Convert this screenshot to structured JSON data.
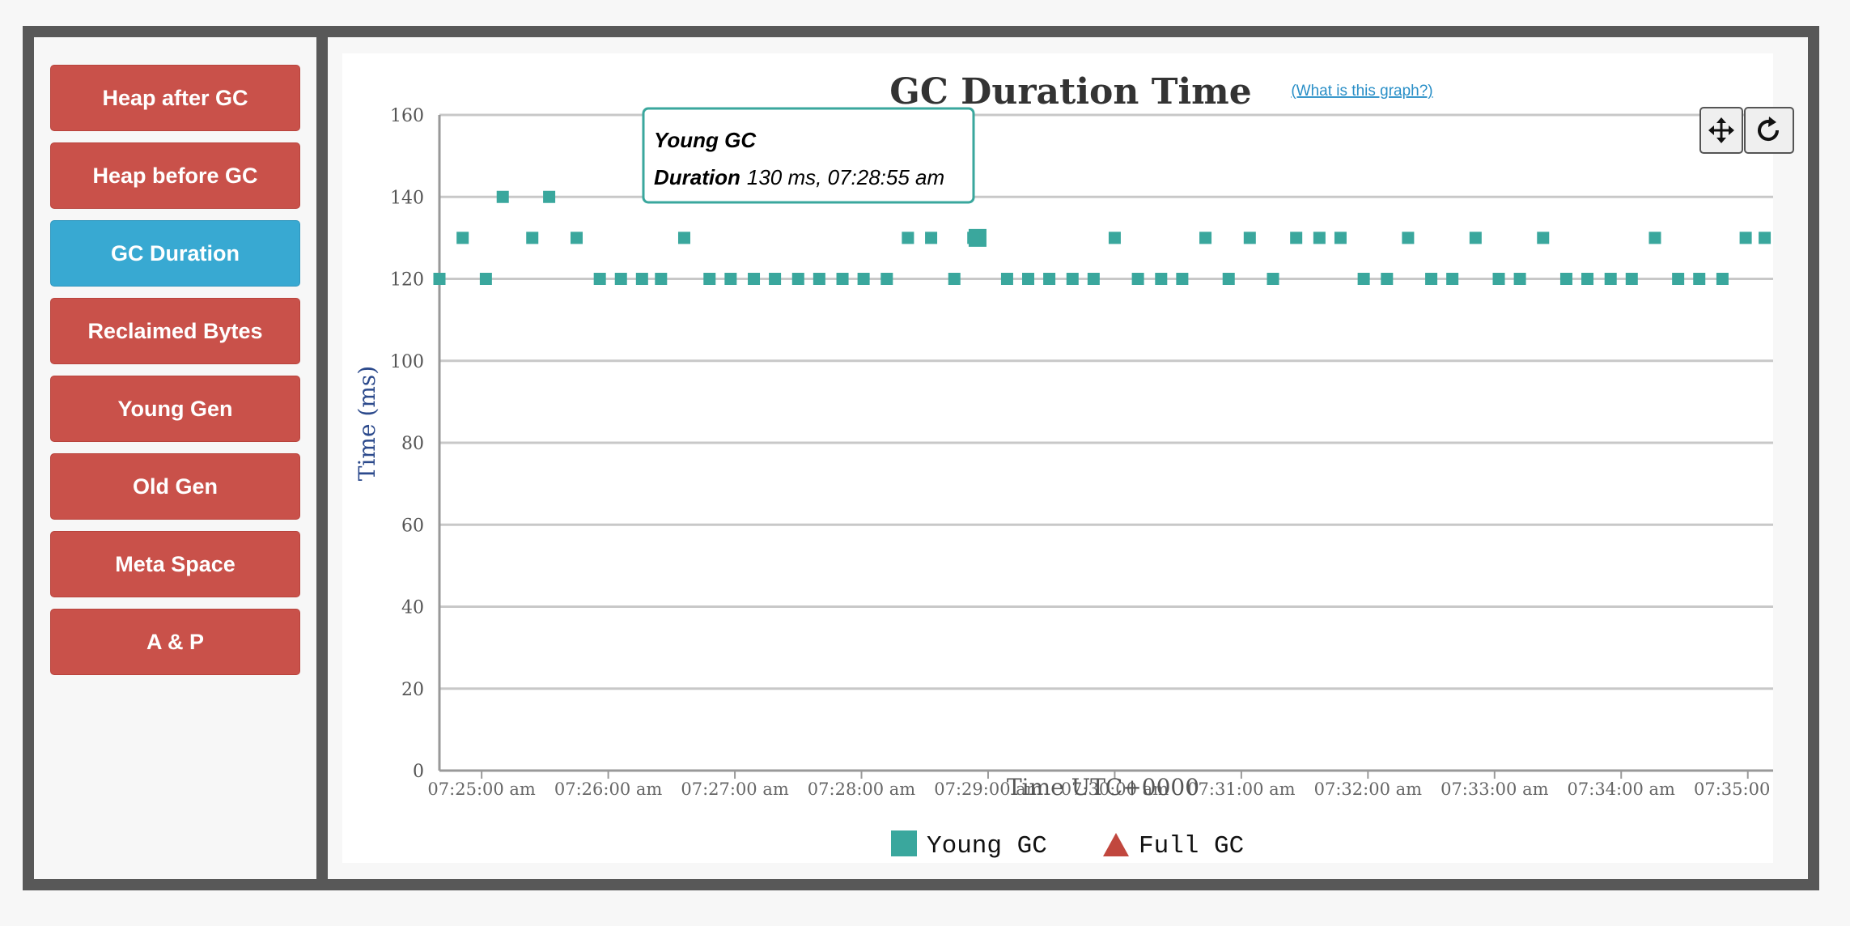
{
  "sidebar": {
    "items": [
      {
        "label": "Heap after GC",
        "active": false
      },
      {
        "label": "Heap before GC",
        "active": false
      },
      {
        "label": "GC Duration",
        "active": true
      },
      {
        "label": "Reclaimed Bytes",
        "active": false
      },
      {
        "label": "Young Gen",
        "active": false
      },
      {
        "label": "Old Gen",
        "active": false
      },
      {
        "label": "Meta Space",
        "active": false
      },
      {
        "label": "A & P",
        "active": false
      }
    ]
  },
  "toolbar": {
    "pan_icon": "move-arrows-icon",
    "reset_icon": "reset-rotate-icon"
  },
  "colors": {
    "active_button": "#38a9d2",
    "inactive_button": "#c9514a",
    "young_gc": "#3aa79d",
    "full_gc": "#c1473e"
  },
  "chart_data": {
    "type": "scatter",
    "title": "GC Duration Time",
    "help_link": "(What is this graph?)",
    "xlabel": "Time UTC+0000",
    "ylabel": "Time (ms)",
    "ylim": [
      0,
      160
    ],
    "y_ticks": [
      "0",
      "20",
      "40",
      "60",
      "80",
      "100",
      "120",
      "140",
      "160"
    ],
    "x_ticks": [
      "07:25:00 am",
      "07:26:00 am",
      "07:27:00 am",
      "07:28:00 am",
      "07:29:00 am",
      "07:30:00 am",
      "07:31:00 am",
      "07:32:00 am",
      "07:33:00 am",
      "07:34:00 am",
      "07:35:00 am"
    ],
    "xlim": [
      "07:24:40 am",
      "07:35:12 am"
    ],
    "grid": true,
    "legend_position": "bottom-center",
    "series": [
      {
        "name": "Young GC",
        "marker": "square",
        "points": [
          [
            "07:24:40 am",
            120
          ],
          [
            "07:24:51 am",
            130
          ],
          [
            "07:25:02 am",
            120
          ],
          [
            "07:25:10 am",
            140
          ],
          [
            "07:25:24 am",
            130
          ],
          [
            "07:25:32 am",
            140
          ],
          [
            "07:25:45 am",
            130
          ],
          [
            "07:25:56 am",
            120
          ],
          [
            "07:26:06 am",
            120
          ],
          [
            "07:26:16 am",
            120
          ],
          [
            "07:26:25 am",
            120
          ],
          [
            "07:26:36 am",
            130
          ],
          [
            "07:26:48 am",
            120
          ],
          [
            "07:26:58 am",
            120
          ],
          [
            "07:27:09 am",
            120
          ],
          [
            "07:27:19 am",
            120
          ],
          [
            "07:27:30 am",
            120
          ],
          [
            "07:27:40 am",
            120
          ],
          [
            "07:27:51 am",
            120
          ],
          [
            "07:28:01 am",
            120
          ],
          [
            "07:28:12 am",
            120
          ],
          [
            "07:28:22 am",
            130
          ],
          [
            "07:28:33 am",
            130
          ],
          [
            "07:28:44 am",
            120
          ],
          [
            "07:28:55 am",
            130
          ],
          [
            "07:28:53 am",
            130
          ],
          [
            "07:29:09 am",
            120
          ],
          [
            "07:29:19 am",
            120
          ],
          [
            "07:29:29 am",
            120
          ],
          [
            "07:29:40 am",
            120
          ],
          [
            "07:29:50 am",
            120
          ],
          [
            "07:30:00 am",
            130
          ],
          [
            "07:30:11 am",
            120
          ],
          [
            "07:30:22 am",
            120
          ],
          [
            "07:30:32 am",
            120
          ],
          [
            "07:30:43 am",
            130
          ],
          [
            "07:30:54 am",
            120
          ],
          [
            "07:31:04 am",
            130
          ],
          [
            "07:31:15 am",
            120
          ],
          [
            "07:31:26 am",
            130
          ],
          [
            "07:31:37 am",
            130
          ],
          [
            "07:31:47 am",
            130
          ],
          [
            "07:31:58 am",
            120
          ],
          [
            "07:32:09 am",
            120
          ],
          [
            "07:32:19 am",
            130
          ],
          [
            "07:32:30 am",
            120
          ],
          [
            "07:32:40 am",
            120
          ],
          [
            "07:32:51 am",
            130
          ],
          [
            "07:33:02 am",
            120
          ],
          [
            "07:33:12 am",
            120
          ],
          [
            "07:33:23 am",
            130
          ],
          [
            "07:33:34 am",
            120
          ],
          [
            "07:33:44 am",
            120
          ],
          [
            "07:33:55 am",
            120
          ],
          [
            "07:34:05 am",
            120
          ],
          [
            "07:34:16 am",
            130
          ],
          [
            "07:34:27 am",
            120
          ],
          [
            "07:34:37 am",
            120
          ],
          [
            "07:34:48 am",
            120
          ],
          [
            "07:34:59 am",
            130
          ],
          [
            "07:35:08 am",
            130
          ]
        ]
      },
      {
        "name": "Full GC",
        "marker": "triangle",
        "points": []
      }
    ],
    "tooltip": {
      "title": "Young GC",
      "field": "Duration",
      "value": "130 ms, 07:28:55 am"
    }
  }
}
